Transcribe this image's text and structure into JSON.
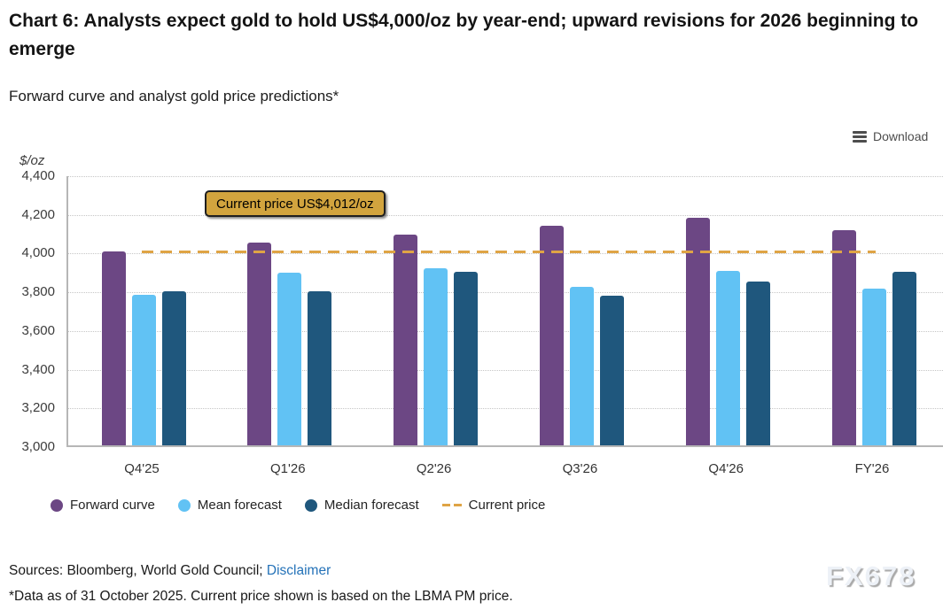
{
  "title": "Chart 6: Analysts expect gold to hold US$4,000/oz by year-end; upward revisions for 2026 beginning to emerge",
  "subtitle": "Forward curve and analyst gold price predictions*",
  "toolbar": {
    "download_label": "Download"
  },
  "chart_data": {
    "type": "bar",
    "title": "Forward curve and analyst gold price predictions*",
    "unit_label": "$/oz",
    "categories": [
      "Q4'25",
      "Q1'26",
      "Q2'26",
      "Q3'26",
      "Q4'26",
      "FY'26"
    ],
    "series": [
      {
        "name": "Forward curve",
        "color": "#6c4784",
        "values": [
          4000,
          4050,
          4090,
          4135,
          4175,
          4110
        ]
      },
      {
        "name": "Mean forecast",
        "color": "#61c2f4",
        "values": [
          3780,
          3890,
          3915,
          3820,
          3900,
          3810
        ]
      },
      {
        "name": "Median forecast",
        "color": "#1f577d",
        "values": [
          3795,
          3795,
          3895,
          3775,
          3845,
          3895
        ]
      }
    ],
    "reference_line": {
      "name": "Current price",
      "value": 4012,
      "color": "#dfa445",
      "style": "dashed"
    },
    "annotation": "Current price US$4,012/oz",
    "ylim": [
      3000,
      4400
    ],
    "ytick_step": 200,
    "yticks": [
      "4,400",
      "4,200",
      "4,000",
      "3,800",
      "3,600",
      "3,400",
      "3,200",
      "3,000"
    ],
    "grid": "horizontal dotted",
    "legend_position": "bottom-left"
  },
  "legend": {
    "items": [
      {
        "label": "Forward curve",
        "marker": "circle",
        "color": "#6c4784"
      },
      {
        "label": "Mean forecast",
        "marker": "circle",
        "color": "#61c2f4"
      },
      {
        "label": "Median forecast",
        "marker": "circle",
        "color": "#1f577d"
      },
      {
        "label": "Current price",
        "marker": "dash",
        "color": "#dfa445"
      }
    ]
  },
  "footer": {
    "sources_prefix": "Sources: Bloomberg, World Gold Council; ",
    "disclaimer_label": "Disclaimer",
    "footnote": "*Data as of 31 October 2025. Current price shown is based on the LBMA PM price.",
    "watermark": "FX678"
  }
}
